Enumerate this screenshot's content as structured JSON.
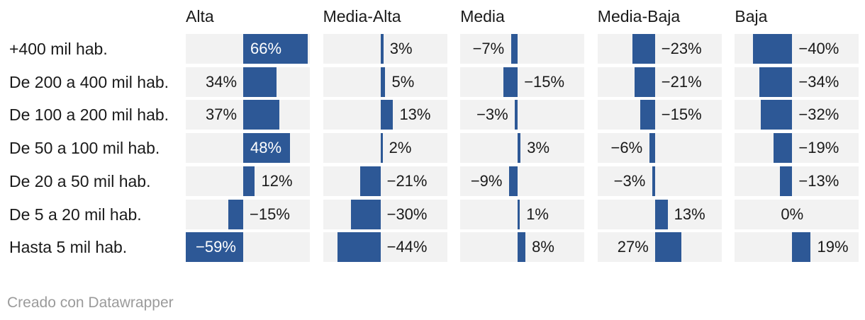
{
  "chart": {
    "column_headers": [
      "Alta",
      "Media-Alta",
      "Media",
      "Media-Baja",
      "Baja"
    ],
    "row_labels": [
      "+400 mil hab.",
      "De 200 a 400 mil hab.",
      "De 100 a 200 mil hab.",
      "De 50 a 100 mil hab.",
      "De 20 a 50 mil hab.",
      "De 5 a 20 mil hab.",
      "Hasta 5 mil hab."
    ]
  },
  "chart_data": {
    "type": "bar",
    "variant": "small-multiples-diverging-horizontal",
    "categories": [
      "+400 mil hab.",
      "De 200 a 400 mil hab.",
      "De 100 a 200 mil hab.",
      "De 50 a 100 mil hab.",
      "De 20 a 50 mil hab.",
      "De 5 a 20 mil hab.",
      "Hasta 5 mil hab."
    ],
    "series": [
      {
        "name": "Alta",
        "values": [
          66,
          34,
          37,
          48,
          12,
          -15,
          -59
        ],
        "labels": [
          "66%",
          "34%",
          "37%",
          "48%",
          "12%",
          "−15%",
          "−59%"
        ]
      },
      {
        "name": "Media-Alta",
        "values": [
          3,
          5,
          13,
          2,
          -21,
          -30,
          -44
        ],
        "labels": [
          "3%",
          "5%",
          "13%",
          "2%",
          "−21%",
          "−30%",
          "−44%"
        ]
      },
      {
        "name": "Media",
        "values": [
          -7,
          -15,
          -3,
          3,
          -9,
          1,
          8
        ],
        "labels": [
          "−7%",
          "−15%",
          "−3%",
          "3%",
          "−9%",
          "1%",
          "8%"
        ]
      },
      {
        "name": "Media-Baja",
        "values": [
          -23,
          -21,
          -15,
          -6,
          -3,
          13,
          27
        ],
        "labels": [
          "−23%",
          "−21%",
          "−15%",
          "−6%",
          "−3%",
          "13%",
          "27%"
        ]
      },
      {
        "name": "Baja",
        "values": [
          -40,
          -34,
          -32,
          -19,
          -13,
          0,
          19
        ],
        "labels": [
          "−40%",
          "−34%",
          "−32%",
          "−19%",
          "−13%",
          "0%",
          "19%"
        ]
      }
    ],
    "value_suffix": "%",
    "xlim": [
      -59,
      68.5
    ],
    "grid": false,
    "legend_position": "none (panel titles on top)",
    "colors": {
      "bar": "#2d5896",
      "cell_bg": "#f2f2f2",
      "label_dark": "#1a1a1a",
      "label_inside": "#ffffff"
    }
  },
  "footer": {
    "text": "Creado con Datawrapper"
  }
}
